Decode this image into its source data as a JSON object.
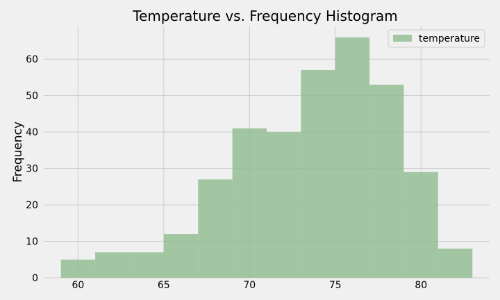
{
  "chart_data": {
    "type": "bar",
    "title": "Temperature vs. Frequency Histogram",
    "xlabel": "",
    "ylabel": "Frequency",
    "xlim": [
      58,
      84
    ],
    "ylim": [
      0,
      69
    ],
    "xticks": [
      60,
      65,
      70,
      75,
      80
    ],
    "yticks": [
      0,
      10,
      20,
      30,
      40,
      50,
      60
    ],
    "grid": true,
    "legend_position": "top-right",
    "series": [
      {
        "name": "temperature",
        "color": "#8fbc8f",
        "bins": [
          {
            "x0": 59,
            "x1": 61,
            "count": 5
          },
          {
            "x0": 61,
            "x1": 63,
            "count": 7
          },
          {
            "x0": 63,
            "x1": 65,
            "count": 7
          },
          {
            "x0": 65,
            "x1": 67,
            "count": 12
          },
          {
            "x0": 67,
            "x1": 69,
            "count": 27
          },
          {
            "x0": 69,
            "x1": 71,
            "count": 41
          },
          {
            "x0": 71,
            "x1": 73,
            "count": 40
          },
          {
            "x0": 73,
            "x1": 75,
            "count": 57
          },
          {
            "x0": 75,
            "x1": 77,
            "count": 66
          },
          {
            "x0": 77,
            "x1": 79,
            "count": 53
          },
          {
            "x0": 79,
            "x1": 81,
            "count": 29
          },
          {
            "x0": 81,
            "x1": 83,
            "count": 8
          }
        ]
      }
    ]
  }
}
